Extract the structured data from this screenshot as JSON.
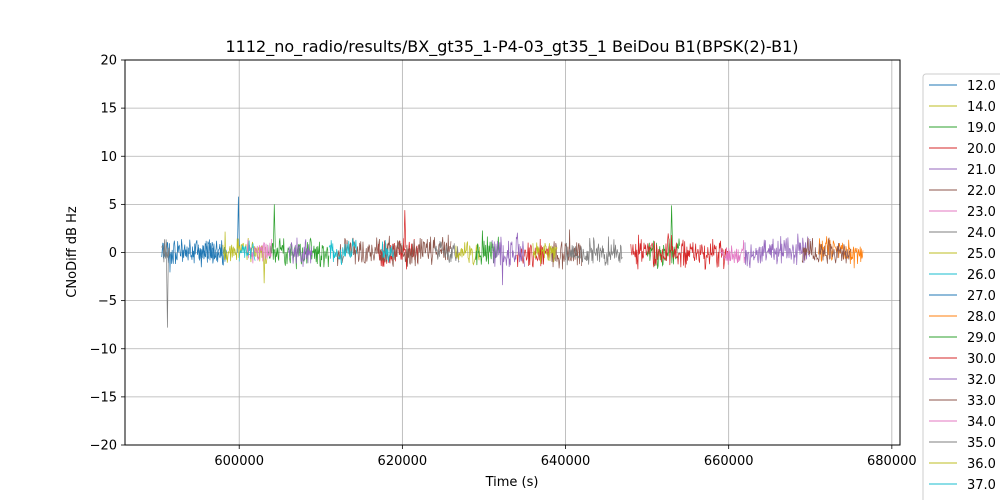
{
  "chart_data": {
    "type": "line",
    "title": "1112_no_radio/results/BX_gt35_1-P4-03_gt35_1 BeiDou B1(BPSK(2)-B1)",
    "xlabel": "Time (s)",
    "ylabel": "CNoDiff dB Hz",
    "xlim": [
      586000,
      681000
    ],
    "ylim": [
      -20,
      20
    ],
    "xticks": [
      600000,
      620000,
      640000,
      660000,
      680000
    ],
    "yticks": [
      -20,
      -15,
      -10,
      -5,
      0,
      5,
      10,
      15,
      20
    ],
    "grid": true,
    "legend_position": "right, outside plot (clipped at bottom)",
    "series": [
      {
        "name": "12.0",
        "color": "#1f77b4",
        "segments": [
          [
            590500,
            598500
          ]
        ],
        "amp": 1.2,
        "spike": [
          599900,
          5.8
        ]
      },
      {
        "name": "14.0",
        "color": "#bcbd22",
        "segments": [
          [
            598000,
            603500
          ]
        ],
        "amp": 1.0
      },
      {
        "name": "19.0",
        "color": "#2ca02c",
        "segments": [
          [
            603500,
            611000
          ]
        ],
        "amp": 1.3,
        "spike": [
          604300,
          5.0
        ]
      },
      {
        "name": "20.0",
        "color": "#d62728",
        "segments": [
          [
            617000,
            622000
          ]
        ],
        "amp": 1.1,
        "spike": [
          620300,
          4.4
        ]
      },
      {
        "name": "21.0",
        "color": "#9467bd",
        "segments": [
          [
            606000,
            609000
          ]
        ],
        "amp": 1.2
      },
      {
        "name": "22.0",
        "color": "#8c564b",
        "segments": [
          [
            612000,
            626000
          ]
        ],
        "amp": 1.2
      },
      {
        "name": "23.0",
        "color": "#e377c2",
        "segments": [
          [
            601000,
            604000
          ]
        ],
        "amp": 1.0
      },
      {
        "name": "24.0",
        "color": "#7f7f7f",
        "segments": [
          [
            624000,
            627000
          ]
        ],
        "amp": 1.0
      },
      {
        "name": "25.0",
        "color": "#bcbd22",
        "segments": [
          [
            626500,
            629500
          ]
        ],
        "amp": 1.0
      },
      {
        "name": "26.0",
        "color": "#17becf",
        "segments": [
          [
            611000,
            614500
          ]
        ],
        "amp": 1.2
      },
      {
        "name": "27.0",
        "color": "#1f77b4",
        "segments": [
          [
            595000,
            598000
          ]
        ],
        "amp": 1.0
      },
      {
        "name": "28.0",
        "color": "#ff7f0e",
        "segments": [
          [
            671000,
            676500
          ]
        ],
        "amp": 1.2
      },
      {
        "name": "29.0",
        "color": "#2ca02c",
        "segments": [
          [
            629000,
            632000
          ],
          [
            650000,
            654000
          ]
        ],
        "amp": 1.3,
        "spike": [
          653000,
          4.9
        ]
      },
      {
        "name": "30.0",
        "color": "#d62728",
        "segments": [
          [
            634000,
            638000
          ],
          [
            648000,
            660000
          ]
        ],
        "amp": 1.3
      },
      {
        "name": "32.0",
        "color": "#9467bd",
        "segments": [
          [
            631000,
            635000
          ],
          [
            662000,
            670000
          ]
        ],
        "amp": 1.3
      },
      {
        "name": "33.0",
        "color": "#8c564b",
        "segments": [
          [
            638000,
            642000
          ],
          [
            669000,
            675000
          ]
        ],
        "amp": 1.2
      },
      {
        "name": "34.0",
        "color": "#e377c2",
        "segments": [
          [
            659000,
            662000
          ]
        ],
        "amp": 1.1
      },
      {
        "name": "35.0",
        "color": "#7f7f7f",
        "segments": [
          [
            590500,
            591500
          ],
          [
            640000,
            647000
          ]
        ],
        "amp": 1.2,
        "spike": [
          591200,
          -7.8
        ]
      },
      {
        "name": "36.0",
        "color": "#bcbd22",
        "segments": [
          [
            636000,
            639000
          ]
        ],
        "amp": 1.0
      },
      {
        "name": "37.0",
        "color": "#17becf",
        "segments": [
          [
            600000,
            602000
          ],
          [
            617500,
            619000
          ]
        ],
        "amp": 1.2
      }
    ]
  }
}
